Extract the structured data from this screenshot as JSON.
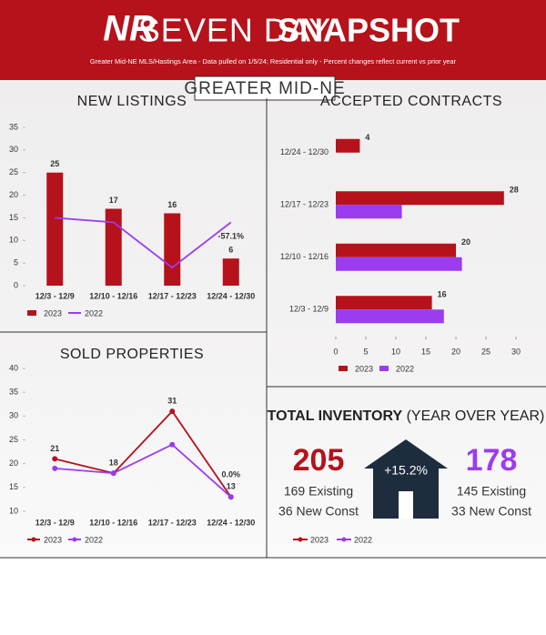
{
  "header": {
    "logo": "NR",
    "title_light": "SEVEN DAY",
    "title_bold": "SNAPSHOT",
    "subtitle": "Greater Mid-NE MLS/Hastings Area - Data pulled on 1/5/24; Residential only - Percent changes reflect current vs prior year",
    "region": "GREATER MID-NE"
  },
  "chart_data": [
    {
      "type": "bar",
      "title": "NEW LISTINGS",
      "categories": [
        "12/3 - 12/9",
        "12/10 - 12/16",
        "12/17 - 12/23",
        "12/24 - 12/30"
      ],
      "series": [
        {
          "name": "2023",
          "color": "#b5121b",
          "values": [
            25,
            17,
            16,
            6
          ]
        },
        {
          "name": "2022",
          "color": "#9b3cf0",
          "type": "line",
          "values": [
            15,
            14,
            4,
            14
          ]
        }
      ],
      "ylim": [
        0,
        35
      ],
      "yticks": [
        0,
        5,
        10,
        15,
        20,
        25,
        30,
        35
      ],
      "grid": false,
      "annotation": "-57.1%"
    },
    {
      "type": "bar",
      "orientation": "horizontal",
      "title": "ACCEPTED CONTRACTS",
      "categories": [
        "12/24 - 12/30",
        "12/17 - 12/23",
        "12/10 - 12/16",
        "12/3 - 12/9"
      ],
      "series": [
        {
          "name": "2023",
          "color": "#b5121b",
          "values": [
            4,
            28,
            20,
            16
          ]
        },
        {
          "name": "2022",
          "color": "#9b3cf0",
          "values": [
            0,
            11,
            21,
            18
          ]
        }
      ],
      "xlim": [
        0,
        30
      ],
      "xticks": [
        0,
        5,
        10,
        15,
        20,
        25,
        30
      ],
      "grid": false
    },
    {
      "type": "line",
      "title": "SOLD PROPERTIES",
      "categories": [
        "12/3 - 12/9",
        "12/10 - 12/16",
        "12/17 - 12/23",
        "12/24 - 12/30"
      ],
      "series": [
        {
          "name": "2023",
          "color": "#b5121b",
          "values": [
            21,
            18,
            31,
            13
          ]
        },
        {
          "name": "2022",
          "color": "#9b3cf0",
          "values": [
            19,
            18,
            24,
            13
          ]
        }
      ],
      "ylim": [
        10,
        40
      ],
      "yticks": [
        10,
        15,
        20,
        25,
        30,
        35,
        40
      ],
      "grid": false,
      "annotation": "0.0%"
    }
  ],
  "inventory": {
    "title": "TOTAL INVENTORY",
    "subtitle": "(YEAR OVER YEAR)",
    "current": {
      "total": "205",
      "existing": "169 Existing",
      "new": "36 New Const"
    },
    "change": "+15.2%",
    "prior": {
      "total": "178",
      "existing": "145 Existing",
      "new": "33 New Const"
    },
    "legend": [
      "2023",
      "2022"
    ]
  }
}
